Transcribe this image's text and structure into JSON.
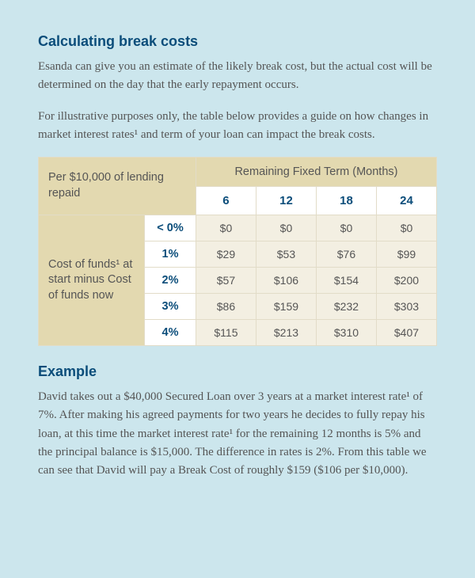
{
  "section1": {
    "title": "Calculating break costs",
    "p1": "Esanda can give you an estimate of the likely break cost, but the actual cost will be determined on the day that the early repayment occurs.",
    "p2": "For illustrative purposes only, the table below provides a guide on how changes in market interest rates¹ and term of your loan can impact the break costs."
  },
  "table": {
    "corner": "Per $10,000 of lending repaid",
    "top": "Remaining Fixed Term (Months)",
    "terms": [
      "6",
      "12",
      "18",
      "24"
    ],
    "rowlabel": "Cost of funds¹ at start minus Cost of funds now",
    "rates": [
      "< 0%",
      "1%",
      "2%",
      "3%",
      "4%"
    ],
    "rows": [
      [
        "$0",
        "$0",
        "$0",
        "$0"
      ],
      [
        "$29",
        "$53",
        "$76",
        "$99"
      ],
      [
        "$57",
        "$106",
        "$154",
        "$200"
      ],
      [
        "$86",
        "$159",
        "$232",
        "$303"
      ],
      [
        "$115",
        "$213",
        "$310",
        "$407"
      ]
    ]
  },
  "section2": {
    "title": "Example",
    "p1": "David takes out a $40,000 Secured Loan over 3 years at a market interest rate¹ of 7%. After making his agreed payments for two years he decides to fully repay his loan, at this time the market interest rate¹ for the remaining 12 months is 5% and the principal balance is $15,000. The difference in rates is 2%. From this table we can see that David will pay a Break Cost of roughly $159 ($106 per $10,000)."
  }
}
